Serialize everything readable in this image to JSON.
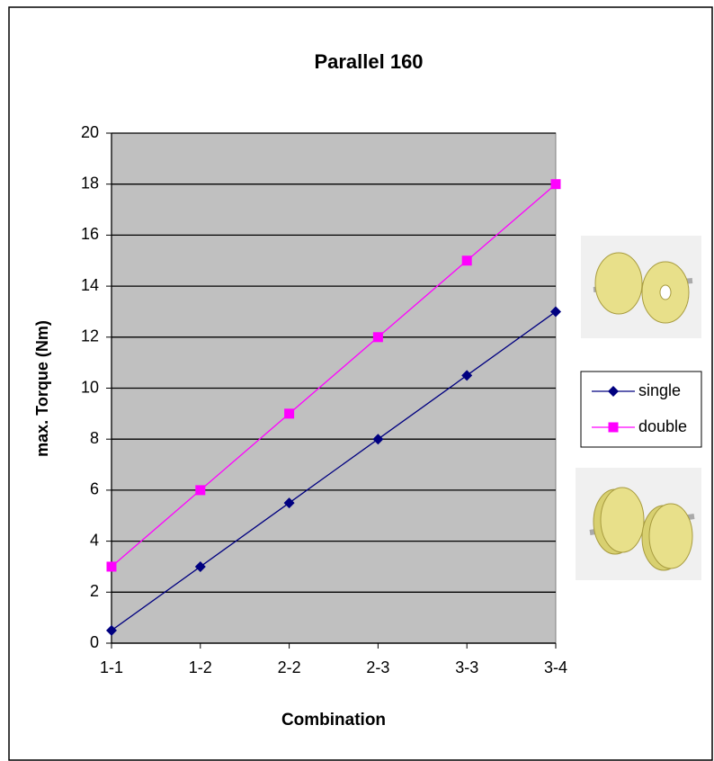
{
  "chart_data": {
    "type": "line",
    "title": "Parallel 160",
    "x_label": "Combination",
    "y_label": "max. Torque (Nm)",
    "categories": [
      "1-1",
      "1-2",
      "2-2",
      "2-3",
      "3-3",
      "3-4"
    ],
    "series": [
      {
        "name": "single",
        "color": "#000080",
        "marker": "diamond",
        "values": [
          0.5,
          3,
          5.5,
          8,
          10.5,
          13
        ]
      },
      {
        "name": "double",
        "color": "#ff00ff",
        "marker": "square",
        "values": [
          3,
          6,
          9,
          12,
          15,
          18
        ]
      }
    ],
    "ylim": [
      0,
      20
    ],
    "yticks": [
      0,
      2,
      4,
      6,
      8,
      10,
      12,
      14,
      16,
      18,
      20
    ],
    "grid": true,
    "legend": "right",
    "plot_background": "#c0c0c0"
  }
}
